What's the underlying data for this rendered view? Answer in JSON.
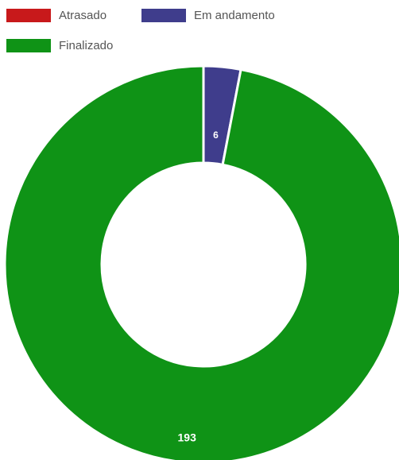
{
  "chart_data": {
    "type": "pie",
    "variant": "doughnut",
    "legend_position": "top-left",
    "series": [
      {
        "name": "Atrasado",
        "value": 0,
        "color": "#c8191b",
        "label": ""
      },
      {
        "name": "Em andamento",
        "value": 6,
        "color": "#3f3d8c",
        "label": "6"
      },
      {
        "name": "Finalizado",
        "value": 193,
        "color": "#0f9316",
        "label": "193"
      }
    ]
  }
}
